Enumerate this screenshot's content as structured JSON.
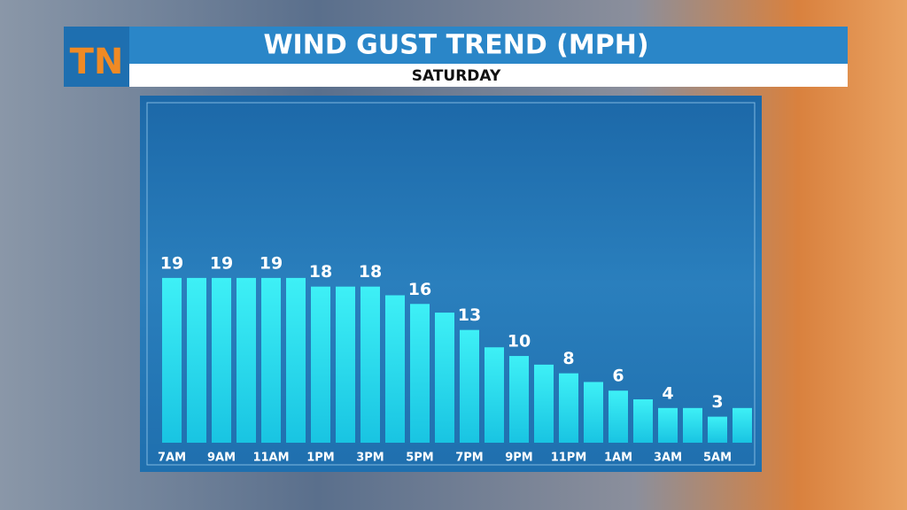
{
  "logo": "TN",
  "chart_data": {
    "type": "bar",
    "title": "WIND GUST TREND (MPH)",
    "subtitle": "SATURDAY",
    "categories": [
      "7AM",
      null,
      "9AM",
      null,
      "11AM",
      null,
      "1PM",
      null,
      "3PM",
      null,
      "5PM",
      null,
      "7PM",
      null,
      "9PM",
      null,
      "11PM",
      null,
      "1AM",
      null,
      "3AM",
      null,
      "5AM",
      null
    ],
    "values": [
      19,
      19,
      19,
      19,
      19,
      19,
      18,
      18,
      18,
      17,
      16,
      15,
      13,
      11,
      10,
      9,
      8,
      7,
      6,
      5,
      4,
      4,
      3,
      4
    ],
    "color": "#2fe3ef",
    "ylim": [
      0,
      39
    ]
  }
}
